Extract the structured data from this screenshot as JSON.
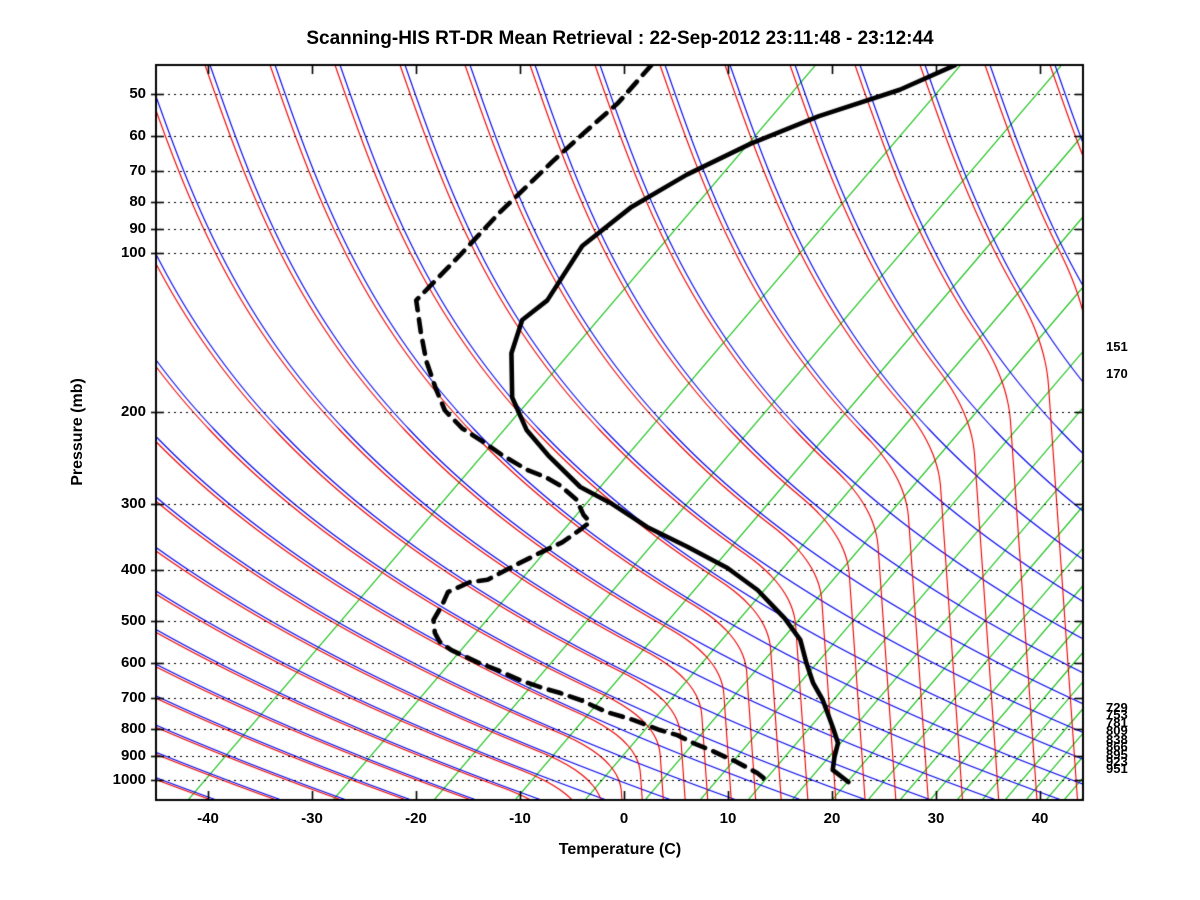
{
  "title": "Scanning-HIS RT-DR Mean Retrieval : 22-Sep-2012 23:11:48 - 23:12:44",
  "plot": {
    "x_axis": {
      "label": "Temperature (C)",
      "ticks": [
        "-40",
        "-30",
        "-20",
        "-10",
        "0",
        "10",
        "20",
        "30",
        "40"
      ],
      "tick_values": [
        -40,
        -30,
        -20,
        -10,
        0,
        10,
        20,
        30,
        40
      ]
    },
    "y_axis": {
      "label": "Pressure (mb)",
      "ticks": [
        "50",
        "60",
        "70",
        "80",
        "90",
        "100",
        "200",
        "300",
        "400",
        "500",
        "600",
        "700",
        "800",
        "900",
        "1000"
      ],
      "tick_values": [
        50,
        60,
        70,
        80,
        90,
        100,
        200,
        300,
        400,
        500,
        600,
        700,
        800,
        900,
        1000
      ]
    }
  },
  "annotations": {
    "upper_right": [
      {
        "text": "151",
        "pressure": 151
      },
      {
        "text": "170",
        "pressure": 170
      }
    ],
    "lower_right": [
      {
        "text": "729",
        "pressure": 729
      },
      {
        "text": "753",
        "pressure": 753
      },
      {
        "text": "781",
        "pressure": 781
      },
      {
        "text": "809",
        "pressure": 809
      },
      {
        "text": "838",
        "pressure": 838
      },
      {
        "text": "866",
        "pressure": 866
      },
      {
        "text": "895",
        "pressure": 895
      },
      {
        "text": "923",
        "pressure": 923
      },
      {
        "text": "951",
        "pressure": 951
      }
    ]
  },
  "colors": {
    "background": "#ffffff",
    "frame": "#000000",
    "gridline": "#000000",
    "isopleth_green": "#00bb00",
    "dry_adiabat_blue": "#0000ee",
    "moist_adiabat_red": "#ee0000",
    "temperature_profile": "#000000",
    "dewpoint_profile": "#000000"
  },
  "chart_data": {
    "type": "line",
    "title": "Scanning-HIS RT-DR Mean Retrieval : 22-Sep-2012 23:11:48 - 23:12:44",
    "xlabel": "Temperature (C)",
    "ylabel": "Pressure (mb)",
    "diagram_style": "skew-T / tephigram sounding",
    "x_range_c": [
      -45,
      44
    ],
    "pressure_range_mb": [
      44,
      1090
    ],
    "y_scale": "log-pressure (inverted)",
    "grid": "dotted horizontal isobars at labeled pressures",
    "background_lines": [
      "green saturation/isotherm isopleths (slanted up-right)",
      "blue dry adiabats (slanted down-right)",
      "red moist adiabats (pair with blue aloft, near-vertical fan at warm bottom-right)"
    ],
    "series": [
      {
        "name": "temperature",
        "style": "solid",
        "color": "#000000",
        "points_p_t": [
          [
            44,
            -28.5
          ],
          [
            49,
            -31.8
          ],
          [
            55,
            -37.4
          ],
          [
            62,
            -41.7
          ],
          [
            71,
            -45.3
          ],
          [
            82,
            -48.0
          ],
          [
            97,
            -49.5
          ],
          [
            123,
            -48.4
          ],
          [
            134,
            -49.2
          ],
          [
            155,
            -47.5
          ],
          [
            188,
            -43.8
          ],
          [
            217,
            -39.7
          ],
          [
            242,
            -35.6
          ],
          [
            278,
            -29.9
          ],
          [
            298,
            -25.7
          ],
          [
            331,
            -20.2
          ],
          [
            361,
            -14.7
          ],
          [
            396,
            -9.1
          ],
          [
            436,
            -4.4
          ],
          [
            493,
            0.5
          ],
          [
            542,
            3.8
          ],
          [
            600,
            6.3
          ],
          [
            655,
            8.6
          ],
          [
            705,
            10.9
          ],
          [
            794,
            14.1
          ],
          [
            851,
            15.9
          ],
          [
            904,
            16.7
          ],
          [
            957,
            17.6
          ],
          [
            1009,
            20.1
          ]
        ]
      },
      {
        "name": "dew_point",
        "style": "dashed",
        "color": "#000000",
        "points_p_t": [
          [
            44,
            -57.7
          ],
          [
            52,
            -57.8
          ],
          [
            59,
            -58.6
          ],
          [
            67,
            -59.3
          ],
          [
            78,
            -59.9
          ],
          [
            84,
            -60.2
          ],
          [
            101,
            -60.5
          ],
          [
            123,
            -61.0
          ],
          [
            141,
            -58.0
          ],
          [
            160,
            -55.1
          ],
          [
            180,
            -52.0
          ],
          [
            199,
            -49.2
          ],
          [
            215,
            -46.1
          ],
          [
            228,
            -43.0
          ],
          [
            242,
            -40.0
          ],
          [
            258,
            -36.4
          ],
          [
            266,
            -34.1
          ],
          [
            276,
            -32.0
          ],
          [
            294,
            -29.2
          ],
          [
            314,
            -27.3
          ],
          [
            324,
            -26.1
          ],
          [
            335,
            -26.4
          ],
          [
            354,
            -27.1
          ],
          [
            371,
            -28.4
          ],
          [
            394,
            -29.9
          ],
          [
            417,
            -31.2
          ],
          [
            421,
            -32.7
          ],
          [
            440,
            -34.0
          ],
          [
            465,
            -33.5
          ],
          [
            497,
            -33.1
          ],
          [
            526,
            -31.9
          ],
          [
            547,
            -30.7
          ],
          [
            567,
            -28.9
          ],
          [
            579,
            -27.5
          ],
          [
            597,
            -25.5
          ],
          [
            618,
            -22.9
          ],
          [
            646,
            -19.9
          ],
          [
            669,
            -17.0
          ],
          [
            684,
            -14.9
          ],
          [
            705,
            -12.4
          ],
          [
            743,
            -8.9
          ],
          [
            769,
            -5.7
          ],
          [
            804,
            -2.3
          ],
          [
            822,
            -0.2
          ],
          [
            851,
            2.0
          ],
          [
            877,
            4.2
          ],
          [
            904,
            6.2
          ],
          [
            924,
            7.7
          ],
          [
            970,
            10.6
          ],
          [
            991,
            11.6
          ]
        ]
      }
    ]
  }
}
